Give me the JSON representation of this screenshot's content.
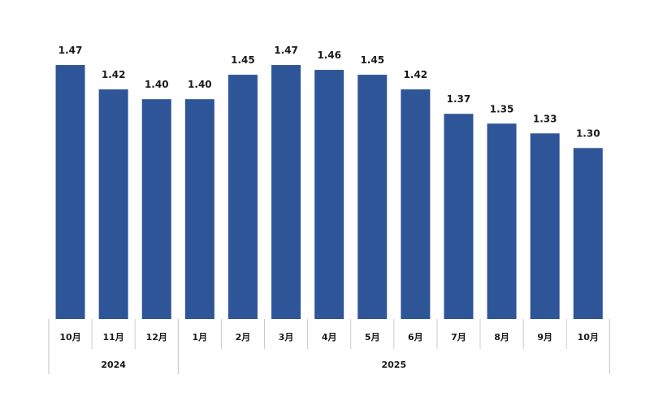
{
  "chart_data": {
    "type": "bar",
    "title": "",
    "xlabel": "",
    "ylabel": "",
    "ylim": [
      0.95,
      1.5
    ],
    "grid": false,
    "legend": "none",
    "bar_color": "#2e5597",
    "categories": [
      "10月",
      "11月",
      "12月",
      "1月",
      "2月",
      "3月",
      "4月",
      "5月",
      "6月",
      "7月",
      "8月",
      "9月",
      "10月"
    ],
    "values": [
      1.47,
      1.42,
      1.4,
      1.4,
      1.45,
      1.47,
      1.46,
      1.45,
      1.42,
      1.37,
      1.35,
      1.33,
      1.3
    ],
    "value_labels": [
      "1.47",
      "1.42",
      "1.40",
      "1.40",
      "1.45",
      "1.47",
      "1.46",
      "1.45",
      "1.42",
      "1.37",
      "1.35",
      "1.33",
      "1.30"
    ],
    "year_groups": [
      {
        "label": "2024",
        "start": 0,
        "end": 2
      },
      {
        "label": "2025",
        "start": 3,
        "end": 12
      }
    ]
  }
}
